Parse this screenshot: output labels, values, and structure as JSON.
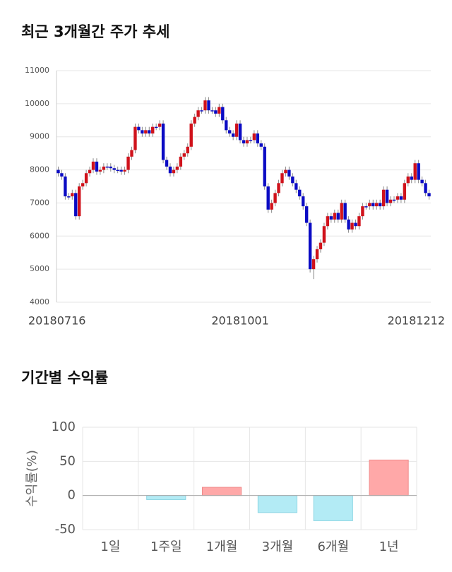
{
  "chart_data": [
    {
      "type": "candlestick",
      "title": "최근 3개월간 주가 추세",
      "categories": [
        "20180716",
        null,
        null,
        null,
        null,
        null,
        null,
        null,
        null,
        null,
        null,
        null,
        null,
        null,
        null,
        null,
        null,
        null,
        null,
        null,
        null,
        null,
        null,
        null,
        null,
        null,
        null,
        null,
        null,
        null,
        null,
        null,
        null,
        null,
        null,
        null,
        null,
        null,
        null,
        null,
        null,
        null,
        null,
        null,
        null,
        null,
        null,
        null,
        null,
        null,
        null,
        null,
        "20181001",
        null,
        null,
        null,
        null,
        null,
        null,
        null,
        null,
        null,
        null,
        null,
        null,
        null,
        null,
        null,
        null,
        null,
        null,
        null,
        null,
        null,
        null,
        null,
        null,
        null,
        null,
        null,
        null,
        null,
        null,
        null,
        null,
        null,
        null,
        null,
        null,
        null,
        null,
        null,
        null,
        null,
        null,
        null,
        null,
        null,
        null,
        null,
        null,
        null,
        null,
        null,
        null,
        null,
        "20181212"
      ],
      "open": [
        8000,
        7900,
        7800,
        7200,
        7200,
        7300,
        6600,
        7500,
        7600,
        7900,
        8000,
        8250,
        7950,
        8000,
        8100,
        8100,
        8050,
        8000,
        8000,
        7950,
        8000,
        8400,
        8600,
        9300,
        9200,
        9100,
        9200,
        9100,
        9300,
        9300,
        9400,
        8300,
        8100,
        7900,
        8000,
        8100,
        8400,
        8500,
        8700,
        9400,
        9600,
        9800,
        9800,
        10100,
        9800,
        9800,
        9700,
        9900,
        9500,
        9200,
        9100,
        9000,
        9400,
        8900,
        8800,
        8900,
        8900,
        9100,
        8800,
        8700,
        7500,
        6800,
        7000,
        7300,
        7600,
        7900,
        8000,
        7800,
        7600,
        7400,
        7200,
        6900,
        6400,
        5000,
        5300,
        5600,
        5800,
        6300,
        6600,
        6500,
        6700,
        6500,
        7000,
        6500,
        6200,
        6400,
        6300,
        6600,
        6900,
        6900,
        7000,
        6900,
        7000,
        6900,
        7400,
        7000,
        7100,
        7100,
        7200,
        7100,
        7600,
        7800,
        7700,
        8200,
        7700,
        7600,
        7300
      ],
      "high": [
        8100,
        8000,
        7900,
        7300,
        7400,
        7400,
        7600,
        7700,
        8000,
        8100,
        8350,
        8350,
        8100,
        8200,
        8200,
        8200,
        8150,
        8100,
        8100,
        8100,
        8500,
        8700,
        9400,
        9400,
        9300,
        9300,
        9300,
        9400,
        9400,
        9500,
        9500,
        8400,
        8200,
        8100,
        8200,
        8500,
        8600,
        8800,
        9500,
        9700,
        9900,
        9900,
        10200,
        10200,
        9900,
        9900,
        10000,
        10000,
        9600,
        9300,
        9200,
        9500,
        9500,
        9000,
        9000,
        9000,
        9200,
        9200,
        8900,
        8800,
        7600,
        7100,
        7400,
        7700,
        8000,
        8100,
        8100,
        7900,
        7700,
        7500,
        7300,
        7000,
        6500,
        5400,
        5700,
        5900,
        6400,
        6700,
        6700,
        6800,
        6800,
        7100,
        7100,
        6600,
        6500,
        6500,
        6700,
        7000,
        7000,
        7100,
        7100,
        7100,
        7100,
        7500,
        7500,
        7200,
        7200,
        7300,
        7300,
        7700,
        7900,
        7900,
        8300,
        8300,
        7800,
        7700,
        7400
      ],
      "low": [
        7800,
        7700,
        7100,
        7100,
        7100,
        6500,
        6500,
        7400,
        7500,
        7800,
        7900,
        7850,
        7850,
        7900,
        8000,
        7950,
        7900,
        7900,
        7850,
        7850,
        7900,
        8300,
        8500,
        9100,
        9000,
        9000,
        9000,
        9000,
        9200,
        9200,
        8200,
        8000,
        7800,
        7800,
        7900,
        8000,
        8300,
        8400,
        8600,
        9300,
        9500,
        9700,
        9700,
        9700,
        9700,
        9600,
        9600,
        9400,
        9100,
        9000,
        8900,
        8900,
        8800,
        8700,
        8700,
        8800,
        8800,
        8700,
        8600,
        7400,
        6700,
        6700,
        6900,
        7200,
        7500,
        7800,
        7700,
        7500,
        7300,
        7100,
        6800,
        6300,
        4900,
        4700,
        5200,
        5500,
        5700,
        6200,
        6400,
        6400,
        6400,
        6400,
        6400,
        6100,
        6100,
        6200,
        6200,
        6500,
        6800,
        6800,
        6800,
        6800,
        6800,
        6800,
        6900,
        6900,
        7000,
        7000,
        7000,
        7000,
        7500,
        7600,
        7600,
        7600,
        7500,
        7200,
        7100
      ],
      "close": [
        7900,
        7800,
        7200,
        7200,
        7300,
        6600,
        7500,
        7600,
        7900,
        8000,
        8250,
        7950,
        8000,
        8100,
        8100,
        8050,
        8000,
        8000,
        7950,
        8000,
        8400,
        8600,
        9300,
        9200,
        9100,
        9200,
        9100,
        9300,
        9300,
        9400,
        8300,
        8100,
        7900,
        8000,
        8100,
        8400,
        8500,
        8700,
        9400,
        9600,
        9800,
        9800,
        10100,
        9800,
        9800,
        9700,
        9900,
        9500,
        9200,
        9100,
        9000,
        9400,
        8900,
        8800,
        8900,
        8900,
        9100,
        8800,
        8700,
        7500,
        6800,
        7000,
        7300,
        7600,
        7900,
        8000,
        7800,
        7600,
        7400,
        7200,
        6900,
        6400,
        5000,
        5300,
        5600,
        5800,
        6300,
        6600,
        6500,
        6700,
        6500,
        7000,
        6500,
        6200,
        6400,
        6300,
        6600,
        6900,
        6900,
        7000,
        6900,
        7000,
        6900,
        7400,
        7000,
        7100,
        7100,
        7200,
        7100,
        7600,
        7800,
        7700,
        8200,
        7700,
        7600,
        7300,
        7200
      ],
      "up_color": "#d0121b",
      "down_color": "#0b0bc4",
      "ylim": [
        4000,
        11000
      ],
      "yticks": [
        4000,
        5000,
        6000,
        7000,
        8000,
        9000,
        10000,
        11000
      ],
      "grid": true
    },
    {
      "type": "bar",
      "title": "기간별 수익률",
      "ylabel": "수익률(%)",
      "categories": [
        "1일",
        "1주일",
        "1개월",
        "3개월",
        "6개월",
        "1년"
      ],
      "values": [
        0,
        -6,
        12,
        -25,
        -37,
        52
      ],
      "positive_color": "#ffa8a8",
      "negative_color": "#b3ebf5",
      "ylim": [
        -50,
        100
      ],
      "yticks": [
        -50,
        0,
        50,
        100
      ],
      "grid": true
    }
  ]
}
